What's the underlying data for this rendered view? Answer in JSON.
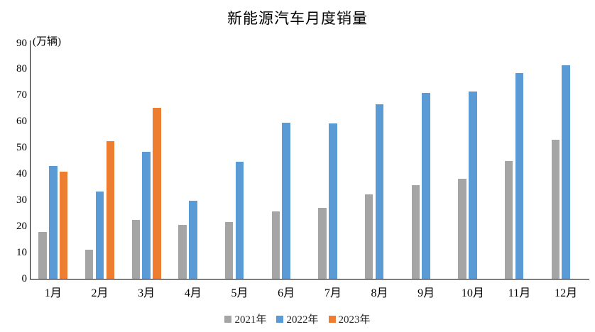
{
  "title": "新能源汽车月度销量",
  "y_axis": {
    "unit_label": "(万辆)",
    "ticks": [
      0,
      10,
      20,
      30,
      40,
      50,
      60,
      70,
      80,
      90
    ]
  },
  "colors": {
    "series_2021": "#A5A5A5",
    "series_2022": "#5B9BD5",
    "series_2023": "#ED7D31",
    "axis": "#000000",
    "text": "#000000"
  },
  "chart_data": {
    "type": "bar",
    "title": "新能源汽车月度销量",
    "categories": [
      "1月",
      "2月",
      "3月",
      "4月",
      "5月",
      "6月",
      "7月",
      "8月",
      "9月",
      "10月",
      "11月",
      "12月"
    ],
    "series": [
      {
        "name": "2021年",
        "color": "#A5A5A5",
        "values": [
          17.9,
          11.0,
          22.6,
          20.6,
          21.7,
          25.6,
          27.1,
          32.1,
          35.7,
          38.3,
          45.0,
          53.1
        ]
      },
      {
        "name": "2022年",
        "color": "#5B9BD5",
        "values": [
          43.1,
          33.4,
          48.4,
          29.9,
          44.7,
          59.6,
          59.3,
          66.6,
          70.8,
          71.4,
          78.6,
          81.4
        ]
      },
      {
        "name": "2023年",
        "color": "#ED7D31",
        "values": [
          40.8,
          52.5,
          65.3,
          null,
          null,
          null,
          null,
          null,
          null,
          null,
          null,
          null
        ]
      }
    ],
    "xlabel": "",
    "ylabel": "(万辆)",
    "ylim": [
      0,
      90
    ],
    "grid": false,
    "legend_position": "bottom"
  }
}
